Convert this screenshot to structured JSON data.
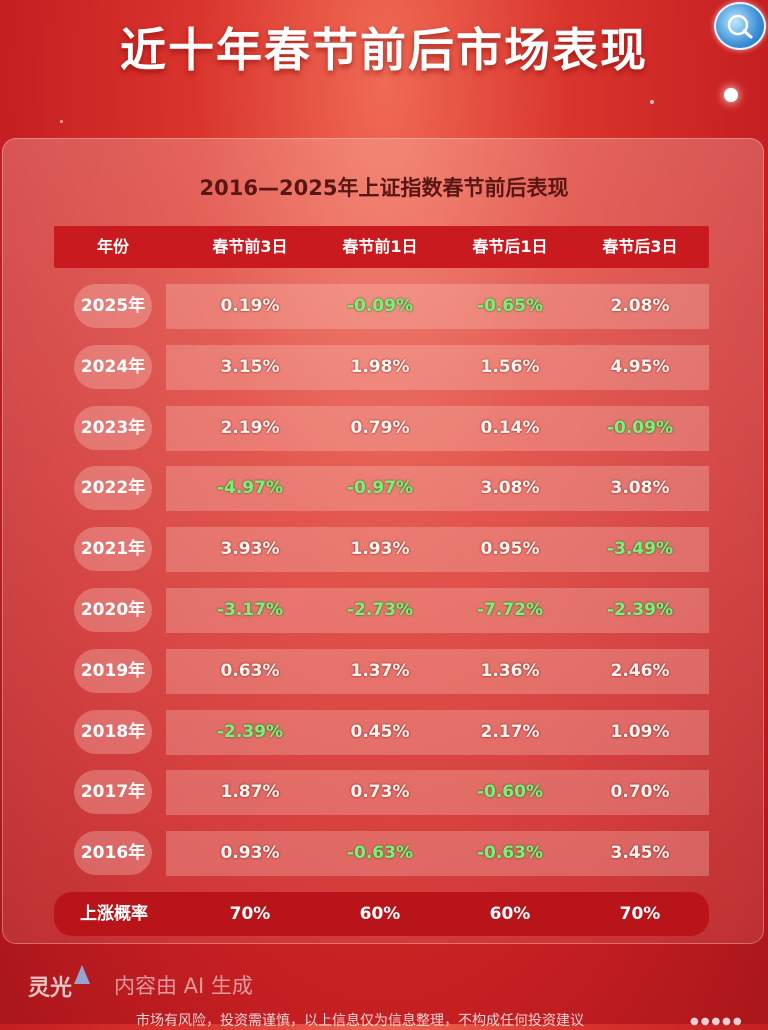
{
  "header": {
    "title": "近十年春节前后市场表现"
  },
  "table": {
    "subtitle": "2016—2025年上证指数春节前后表现",
    "columns": [
      "年份",
      "春节前3日",
      "春节前1日",
      "春节后1日",
      "春节后3日"
    ],
    "rows": [
      {
        "year": "2025年",
        "values": [
          "0.19%",
          "-0.09%",
          "-0.65%",
          "2.08%"
        ]
      },
      {
        "year": "2024年",
        "values": [
          "3.15%",
          "1.98%",
          "1.56%",
          "4.95%"
        ]
      },
      {
        "year": "2023年",
        "values": [
          "2.19%",
          "0.79%",
          "0.14%",
          "-0.09%"
        ]
      },
      {
        "year": "2022年",
        "values": [
          "-4.97%",
          "-0.97%",
          "3.08%",
          "3.08%"
        ]
      },
      {
        "year": "2021年",
        "values": [
          "3.93%",
          "1.93%",
          "0.95%",
          "-3.49%"
        ]
      },
      {
        "year": "2020年",
        "values": [
          "-3.17%",
          "-2.73%",
          "-7.72%",
          "-2.39%"
        ]
      },
      {
        "year": "2019年",
        "values": [
          "0.63%",
          "1.37%",
          "1.36%",
          "2.46%"
        ]
      },
      {
        "year": "2018年",
        "values": [
          "-2.39%",
          "0.45%",
          "2.17%",
          "1.09%"
        ]
      },
      {
        "year": "2017年",
        "values": [
          "1.87%",
          "0.73%",
          "-0.60%",
          "0.70%"
        ]
      },
      {
        "year": "2016年",
        "values": [
          "0.93%",
          "-0.63%",
          "-0.63%",
          "3.45%"
        ]
      }
    ],
    "footer": {
      "label": "上涨概率",
      "values": [
        "70%",
        "60%",
        "60%",
        "70%"
      ]
    }
  },
  "branding": {
    "logo_text": "灵光",
    "ai_notice": "内容由 AI 生成"
  },
  "disclaimer": "市场有风险，投资需谨慎，以上信息仅为信息整理，不构成任何投资建议",
  "colors": {
    "positive": "#fff6f0",
    "negative": "#7ef07a",
    "header_bg": "#c81a1f",
    "background": "#d9342c"
  }
}
